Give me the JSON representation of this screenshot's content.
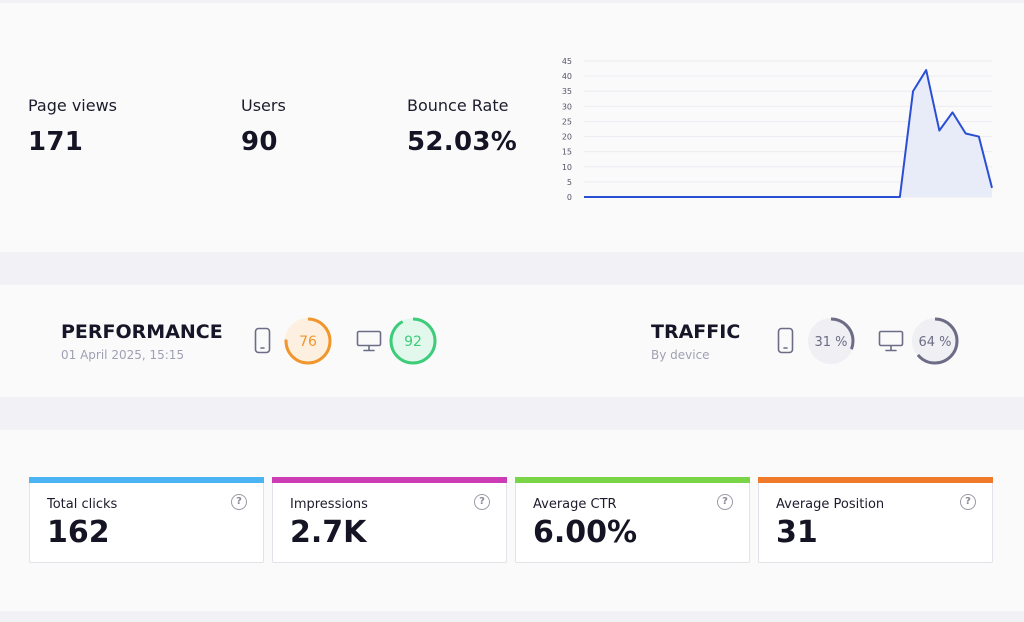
{
  "stats": {
    "page_views": {
      "label": "Page views",
      "value": "171"
    },
    "users": {
      "label": "Users",
      "value": "90"
    },
    "bounce_rate": {
      "label": "Bounce Rate",
      "value": "52.03%"
    }
  },
  "chart_data": {
    "type": "area",
    "y_ticks": [
      "0",
      "5",
      "10",
      "15",
      "20",
      "25",
      "30",
      "35",
      "40",
      "45"
    ],
    "ylim": [
      0,
      45
    ],
    "grid": true,
    "color": "#2a4fd4",
    "fill_color": "#e8ebf8",
    "series": [
      {
        "values": [
          0,
          0,
          0,
          0,
          0,
          0,
          0,
          0,
          0,
          0,
          0,
          0,
          0,
          0,
          0,
          0,
          0,
          0,
          0,
          0,
          0,
          0,
          0,
          0,
          0,
          35,
          42,
          22,
          28,
          21,
          20,
          3
        ]
      }
    ]
  },
  "performance": {
    "title": "PERFORMANCE",
    "date": "01 April 2025, 15:15",
    "mobile_icon": "mobile-icon",
    "desktop_icon": "desktop-icon",
    "mobile": {
      "value": "76",
      "score": 76,
      "color": "#f0962c",
      "track_color": "#fdf0e0"
    },
    "desktop": {
      "value": "92",
      "score": 92,
      "color": "#3dcc7a",
      "track_color": "#e3f8ec"
    }
  },
  "traffic": {
    "title": "TRAFFIC",
    "subtitle": "By device",
    "mobile_icon": "mobile-icon",
    "desktop_icon": "desktop-icon",
    "mobile": {
      "value": "31 %",
      "percent": 31,
      "color": "#6c6c86",
      "track_color": "#efeff4"
    },
    "desktop": {
      "value": "64 %",
      "percent": 64,
      "color": "#6c6c86",
      "track_color": "#efeff4"
    }
  },
  "gsc": {
    "cards": [
      {
        "label": "Total clicks",
        "value": "162",
        "color": "#4ab4f4",
        "icon": "help-icon"
      },
      {
        "label": "Impressions",
        "value": "2.7K",
        "color": "#cc3cb4",
        "icon": "help-icon"
      },
      {
        "label": "Average CTR",
        "value": "6.00%",
        "color": "#7ad448",
        "icon": "help-icon"
      },
      {
        "label": "Average Position",
        "value": "31",
        "color": "#f07a2c",
        "icon": "help-icon"
      }
    ]
  }
}
